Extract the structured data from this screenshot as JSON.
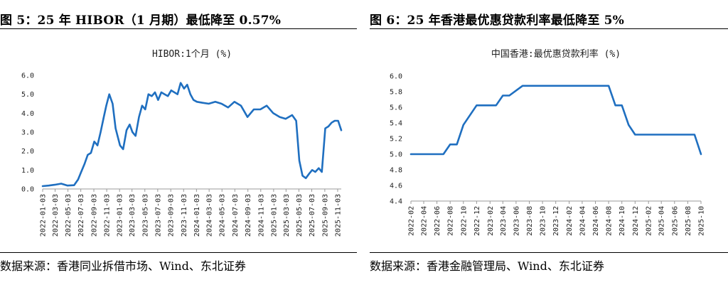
{
  "figures": [
    {
      "title": "图 5：25 年 HIBOR（1 月期）最低降至 0.57%",
      "source": "数据来源：香港同业拆借市场、Wind、东北证券"
    },
    {
      "title": "图 6：25 年香港最优惠贷款利率最低降至 5%",
      "source": "数据来源：香港金融管理局、Wind、东北证券"
    }
  ],
  "chart_data": [
    {
      "type": "line",
      "title": "HIBOR:1个月 (%)",
      "ylim": [
        0,
        6
      ],
      "yticks": [
        "0.0",
        "1.0",
        "2.0",
        "3.0",
        "4.0",
        "5.0",
        "6.0"
      ],
      "x_tick_labels": [
        "2022-01-03",
        "2022-03-03",
        "2022-05-03",
        "2022-07-03",
        "2022-09-03",
        "2022-11-03",
        "2023-01-03",
        "2023-03-03",
        "2023-05-03",
        "2023-07-03",
        "2023-09-03",
        "2023-11-03",
        "2024-01-03",
        "2024-03-03",
        "2024-05-03",
        "2024-07-03",
        "2024-09-03",
        "2024-11-03",
        "2025-01-03",
        "2025-03-03",
        "2025-05-03",
        "2025-07-03",
        "2025-09-03",
        "2025-11-03"
      ],
      "grid": false,
      "legend": "none",
      "color": "#1f6fc0",
      "series": [
        {
          "x": [
            "2022-01-03",
            "2022-02-01",
            "2022-03-01",
            "2022-04-01",
            "2022-05-01",
            "2022-06-01",
            "2022-06-20",
            "2022-07-05",
            "2022-07-20",
            "2022-08-05",
            "2022-08-20",
            "2022-09-05",
            "2022-09-20",
            "2022-10-05",
            "2022-10-20",
            "2022-11-01",
            "2022-11-15",
            "2022-12-01",
            "2022-12-15",
            "2023-01-05",
            "2023-01-20",
            "2023-02-05",
            "2023-02-20",
            "2023-03-05",
            "2023-03-20",
            "2023-04-05",
            "2023-04-20",
            "2023-05-05",
            "2023-05-20",
            "2023-06-05",
            "2023-06-20",
            "2023-07-05",
            "2023-07-20",
            "2023-08-05",
            "2023-08-20",
            "2023-09-05",
            "2023-09-20",
            "2023-10-05",
            "2023-10-20",
            "2023-11-05",
            "2023-11-20",
            "2023-12-05",
            "2023-12-20",
            "2024-01-05",
            "2024-02-01",
            "2024-03-01",
            "2024-04-01",
            "2024-05-01",
            "2024-06-01",
            "2024-07-01",
            "2024-08-01",
            "2024-09-01",
            "2024-10-01",
            "2024-11-01",
            "2024-12-01",
            "2025-01-01",
            "2025-02-01",
            "2025-03-01",
            "2025-04-01",
            "2025-04-20",
            "2025-05-05",
            "2025-05-20",
            "2025-06-05",
            "2025-06-20",
            "2025-07-05",
            "2025-07-20",
            "2025-08-05",
            "2025-08-20",
            "2025-09-05",
            "2025-09-20",
            "2025-10-05",
            "2025-10-20",
            "2025-11-05",
            "2025-11-20"
          ],
          "y": [
            0.15,
            0.18,
            0.22,
            0.28,
            0.18,
            0.2,
            0.5,
            0.9,
            1.3,
            1.8,
            1.9,
            2.5,
            2.3,
            3.0,
            3.8,
            4.4,
            5.0,
            4.5,
            3.2,
            2.3,
            2.1,
            3.1,
            3.4,
            3.0,
            2.8,
            3.8,
            4.4,
            4.2,
            5.0,
            4.9,
            5.1,
            4.7,
            5.1,
            5.0,
            4.9,
            5.2,
            5.1,
            5.0,
            5.6,
            5.3,
            5.5,
            5.0,
            4.7,
            4.6,
            4.55,
            4.5,
            4.6,
            4.5,
            4.3,
            4.6,
            4.4,
            3.8,
            4.2,
            4.2,
            4.4,
            4.0,
            3.8,
            3.7,
            3.9,
            3.6,
            1.5,
            0.7,
            0.57,
            0.8,
            1.0,
            0.9,
            1.1,
            0.9,
            3.2,
            3.3,
            3.5,
            3.6,
            3.6,
            3.1
          ]
        }
      ]
    },
    {
      "type": "line",
      "title": "中国香港:最优惠贷款利率 (%)",
      "ylim": [
        4.4,
        6.0
      ],
      "yticks": [
        "4.4",
        "4.6",
        "4.8",
        "5.0",
        "5.2",
        "5.4",
        "5.6",
        "5.8",
        "6.0"
      ],
      "x_tick_labels": [
        "2022-02",
        "2022-04",
        "2022-06",
        "2022-08",
        "2022-10",
        "2022-12",
        "2023-02",
        "2023-04",
        "2023-06",
        "2023-08",
        "2023-10",
        "2023-12",
        "2024-02",
        "2024-04",
        "2024-06",
        "2024-08",
        "2024-10",
        "2024-12",
        "2025-02",
        "2025-04",
        "2025-06",
        "2025-08",
        "2025-10"
      ],
      "grid": false,
      "legend": "none",
      "color": "#1f6fc0",
      "series": [
        {
          "x": [
            "2022-02",
            "2022-07",
            "2022-08",
            "2022-09",
            "2022-10",
            "2022-12",
            "2023-03",
            "2023-04",
            "2023-05",
            "2023-07",
            "2024-02",
            "2024-08",
            "2024-09",
            "2024-10",
            "2024-11",
            "2024-12",
            "2025-07",
            "2025-09",
            "2025-10"
          ],
          "y": [
            5.0,
            5.0,
            5.125,
            5.125,
            5.375,
            5.625,
            5.625,
            5.75,
            5.75,
            5.875,
            5.875,
            5.875,
            5.625,
            5.625,
            5.375,
            5.25,
            5.25,
            5.25,
            5.0
          ]
        }
      ]
    }
  ]
}
